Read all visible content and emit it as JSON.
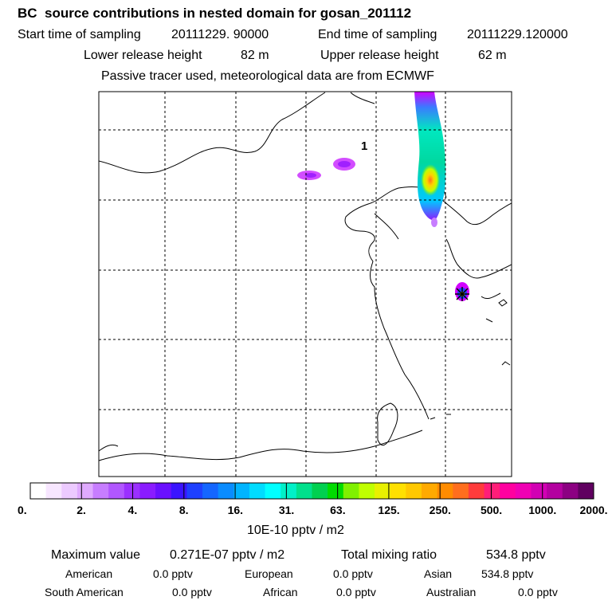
{
  "title": "BC  source contributions in nested domain for gosan_201112",
  "header": {
    "start_label": "Start time of sampling",
    "start_value": "20111229. 90000",
    "end_label": "End time of sampling",
    "end_value": "20111229.120000",
    "lower_label": "Lower release height",
    "lower_value": "82 m",
    "upper_label": "Upper release height",
    "upper_value": "62 m",
    "note": "Passive tracer used, meteorological data are from ECMWF"
  },
  "map": {
    "marker_label": "1"
  },
  "colorbar": {
    "colors": [
      "#ffffff",
      "#f7e6ff",
      "#eccaff",
      "#dfaaff",
      "#c77dff",
      "#b157ff",
      "#9b30ff",
      "#8a1cff",
      "#6a10ff",
      "#3a14ff",
      "#1e40ff",
      "#1466ff",
      "#0a8cff",
      "#00b4ff",
      "#00dcff",
      "#00ffff",
      "#00f0c8",
      "#00e08c",
      "#00d050",
      "#00dc00",
      "#80f000",
      "#c0ff00",
      "#e8f000",
      "#ffe000",
      "#ffc800",
      "#ffaa00",
      "#ff8c00",
      "#ff6e1e",
      "#ff3c3c",
      "#ff1e78",
      "#ff00a0",
      "#f000b4",
      "#d200b4",
      "#b400a0",
      "#8c0082",
      "#600060"
    ],
    "labels": [
      "0.",
      "2.",
      "4.",
      "8.",
      "16.",
      "31.",
      "63.",
      "125.",
      "250.",
      "500.",
      "1000.",
      "2000."
    ],
    "units": "10E-10 pptv / m2"
  },
  "stats": {
    "max_label": "Maximum value",
    "max_value": "0.271E-07 pptv / m2",
    "total_label": "Total mixing ratio",
    "total_value": "534.8 pptv",
    "american_label": "American",
    "american_value": "0.0 pptv",
    "european_label": "European",
    "european_value": "0.0 pptv",
    "asian_label": "Asian",
    "asian_value": "534.8 pptv",
    "south_american_label": "South American",
    "south_american_value": "0.0 pptv",
    "african_label": "African",
    "african_value": "0.0 pptv",
    "australian_label": "Australian",
    "australian_value": "0.0 pptv"
  }
}
